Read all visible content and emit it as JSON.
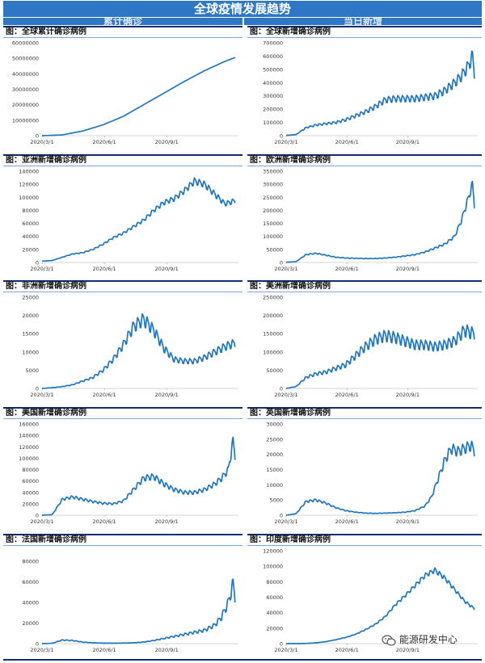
{
  "header": {
    "title": "全球疫情发展趋势",
    "left_column": "累计确诊",
    "right_column": "当日新增"
  },
  "watermark": {
    "text": "能源研发中心",
    "icon": "wechat-icon"
  },
  "colors": {
    "header_bg": "#2e76c6",
    "line": "#1f77c2",
    "rule": "#0e2f73"
  },
  "chart_data": [
    {
      "id": "global-cumulative",
      "type": "line",
      "title": "图：全球累计确诊病例",
      "categories": [
        "2020/3/1",
        "2020/6/1",
        "2020/9/1"
      ],
      "ylim": [
        0,
        60000000
      ],
      "yticks": [
        "60000000",
        "50000000",
        "40000000",
        "30000000",
        "20000000",
        "10000000",
        "0"
      ],
      "noise": 0,
      "series": [
        {
          "name": "全球累计确诊",
          "x": [
            0,
            30,
            60,
            90,
            120,
            150,
            180,
            210,
            240,
            270,
            285
          ],
          "values": [
            0,
            500000,
            3000000,
            7000000,
            12500000,
            20000000,
            27500000,
            35000000,
            42000000,
            48000000,
            50500000
          ]
        }
      ]
    },
    {
      "id": "global-daily",
      "type": "line",
      "title": "图：全球新增确诊病例",
      "categories": [
        "2020/3/1",
        "2020/6/1",
        "2020/9/1"
      ],
      "ylim": [
        0,
        700000
      ],
      "yticks": [
        "700000",
        "600000",
        "500000",
        "400000",
        "300000",
        "200000",
        "100000",
        "0"
      ],
      "noise": 0.11,
      "series": [
        {
          "name": "全球新增",
          "x": [
            0,
            15,
            30,
            45,
            60,
            75,
            90,
            105,
            120,
            135,
            150,
            165,
            180,
            195,
            210,
            225,
            240,
            255,
            265,
            275,
            282,
            285
          ],
          "values": [
            2000,
            8000,
            60000,
            80000,
            90000,
            100000,
            120000,
            150000,
            180000,
            220000,
            270000,
            280000,
            280000,
            280000,
            290000,
            300000,
            340000,
            400000,
            450000,
            520000,
            600000,
            470000
          ]
        }
      ]
    },
    {
      "id": "asia-daily",
      "type": "line",
      "title": "图：亚洲新增确诊病例",
      "categories": [
        "2020/3/1",
        "2020/6/1",
        "2020/9/1"
      ],
      "ylim": [
        0,
        140000
      ],
      "yticks": [
        "140000",
        "120000",
        "100000",
        "80000",
        "60000",
        "40000",
        "20000",
        "0"
      ],
      "noise": 0.05,
      "series": [
        {
          "name": "亚洲新增",
          "x": [
            0,
            15,
            30,
            45,
            60,
            75,
            90,
            105,
            120,
            135,
            150,
            165,
            180,
            195,
            210,
            225,
            240,
            255,
            270,
            285
          ],
          "values": [
            2000,
            3000,
            8000,
            13000,
            15000,
            20000,
            28000,
            38000,
            45000,
            55000,
            65000,
            80000,
            92000,
            98000,
            110000,
            125000,
            120000,
            105000,
            90000,
            95000
          ]
        }
      ]
    },
    {
      "id": "europe-daily",
      "type": "line",
      "title": "图：欧洲新增确诊病例",
      "categories": [
        "2020/3/1",
        "2020/6/1",
        "2020/9/1"
      ],
      "ylim": [
        0,
        350000
      ],
      "yticks": [
        "350000",
        "300000",
        "250000",
        "200000",
        "150000",
        "100000",
        "50000",
        "0"
      ],
      "noise": 0.07,
      "series": [
        {
          "name": "欧洲新增",
          "x": [
            0,
            15,
            30,
            45,
            60,
            75,
            90,
            105,
            120,
            135,
            150,
            165,
            180,
            195,
            210,
            225,
            240,
            255,
            265,
            275,
            282,
            285
          ],
          "values": [
            1000,
            3000,
            30000,
            35000,
            28000,
            20000,
            17000,
            16000,
            15000,
            15000,
            17000,
            20000,
            25000,
            30000,
            40000,
            55000,
            70000,
            100000,
            160000,
            240000,
            300000,
            220000
          ]
        }
      ]
    },
    {
      "id": "africa-daily",
      "type": "line",
      "title": "图：非洲新增确诊病例",
      "categories": [
        "2020/3/1",
        "2020/6/1",
        "2020/9/1"
      ],
      "ylim": [
        0,
        25000
      ],
      "yticks": [
        "25000",
        "20000",
        "15000",
        "10000",
        "5000",
        "0"
      ],
      "noise": 0.12,
      "series": [
        {
          "name": "非洲新增",
          "x": [
            0,
            15,
            30,
            45,
            60,
            75,
            90,
            105,
            120,
            135,
            150,
            165,
            180,
            195,
            210,
            225,
            240,
            255,
            270,
            285
          ],
          "values": [
            0,
            200,
            500,
            1000,
            2000,
            3000,
            5000,
            8000,
            12000,
            17000,
            19000,
            16000,
            11000,
            8000,
            7500,
            7500,
            8500,
            10000,
            11500,
            12500
          ]
        }
      ]
    },
    {
      "id": "americas-daily",
      "type": "line",
      "title": "图：美洲新增确诊病例",
      "categories": [
        "2020/3/1",
        "2020/6/1",
        "2020/9/1"
      ],
      "ylim": [
        0,
        250000
      ],
      "yticks": [
        "250000",
        "200000",
        "150000",
        "100000",
        "50000",
        "0"
      ],
      "noise": 0.14,
      "series": [
        {
          "name": "美洲新增",
          "x": [
            0,
            15,
            30,
            45,
            60,
            75,
            90,
            105,
            120,
            135,
            150,
            165,
            180,
            195,
            210,
            225,
            240,
            255,
            270,
            285
          ],
          "values": [
            0,
            5000,
            30000,
            40000,
            45000,
            55000,
            65000,
            90000,
            115000,
            135000,
            145000,
            140000,
            130000,
            120000,
            120000,
            115000,
            120000,
            130000,
            160000,
            150000
          ]
        }
      ]
    },
    {
      "id": "usa-daily",
      "type": "line",
      "title": "图：美国新增确诊病例",
      "categories": [
        "2020/3/1",
        "2020/6/1",
        "2020/9/1"
      ],
      "ylim": [
        0,
        160000
      ],
      "yticks": [
        "160000",
        "140000",
        "120000",
        "100000",
        "80000",
        "60000",
        "40000",
        "20000",
        "0"
      ],
      "noise": 0.1,
      "series": [
        {
          "name": "美国新增",
          "x": [
            0,
            15,
            30,
            45,
            60,
            75,
            90,
            105,
            120,
            135,
            150,
            165,
            180,
            195,
            210,
            225,
            240,
            255,
            265,
            275,
            282,
            285
          ],
          "values": [
            0,
            1000,
            28000,
            32000,
            28000,
            24000,
            21000,
            20000,
            25000,
            45000,
            65000,
            68000,
            55000,
            45000,
            40000,
            40000,
            45000,
            55000,
            65000,
            80000,
            130000,
            105000
          ]
        }
      ]
    },
    {
      "id": "uk-daily",
      "type": "line",
      "title": "图：英国新增确诊病例",
      "categories": [
        "2020/3/1",
        "2020/6/1",
        "2020/9/1"
      ],
      "ylim": [
        0,
        30000
      ],
      "yticks": [
        "30000",
        "25000",
        "20000",
        "15000",
        "10000",
        "5000",
        "0"
      ],
      "noise": 0.1,
      "series": [
        {
          "name": "英国新增",
          "x": [
            0,
            15,
            30,
            45,
            60,
            75,
            90,
            105,
            120,
            135,
            150,
            165,
            180,
            195,
            210,
            220,
            230,
            240,
            250,
            260,
            270,
            280,
            285
          ],
          "values": [
            0,
            500,
            4500,
            5000,
            4000,
            2500,
            1500,
            1000,
            700,
            600,
            700,
            800,
            1000,
            1500,
            3000,
            6000,
            12000,
            18000,
            22000,
            21000,
            22000,
            23000,
            21000
          ]
        }
      ]
    },
    {
      "id": "france-daily",
      "type": "line",
      "title": "图：法国新增确诊病例",
      "categories": [
        "2020/3/1",
        "2020/6/1",
        "2020/9/1"
      ],
      "ylim": [
        0,
        90000
      ],
      "yticks": [
        "80000",
        "60000",
        "40000",
        "20000",
        "0"
      ],
      "noise": 0.15,
      "series": [
        {
          "name": "法国新增",
          "x": [
            0,
            15,
            30,
            45,
            60,
            75,
            90,
            105,
            120,
            135,
            150,
            165,
            180,
            195,
            210,
            225,
            240,
            255,
            265,
            275,
            282,
            285
          ],
          "values": [
            0,
            300,
            3500,
            3000,
            1500,
            800,
            500,
            400,
            600,
            800,
            1500,
            3000,
            5000,
            7000,
            9000,
            11000,
            13000,
            18000,
            26000,
            40000,
            58000,
            45000
          ]
        }
      ]
    },
    {
      "id": "india-daily",
      "type": "line",
      "title": "图：印度新增确诊病例",
      "categories": [
        "2020/3/1",
        "2020/6/1",
        "2020/9/1"
      ],
      "ylim": [
        0,
        120000
      ],
      "yticks": [
        "120000",
        "100000",
        "80000",
        "60000",
        "40000",
        "20000",
        "0"
      ],
      "noise": 0.04,
      "series": [
        {
          "name": "印度新增",
          "x": [
            0,
            15,
            30,
            45,
            60,
            75,
            90,
            105,
            120,
            135,
            150,
            165,
            180,
            195,
            210,
            225,
            240,
            255,
            270,
            285
          ],
          "values": [
            0,
            0,
            200,
            1000,
            2500,
            5000,
            8000,
            12000,
            18000,
            25000,
            35000,
            50000,
            62000,
            75000,
            88000,
            95000,
            85000,
            70000,
            55000,
            45000
          ]
        }
      ]
    }
  ]
}
